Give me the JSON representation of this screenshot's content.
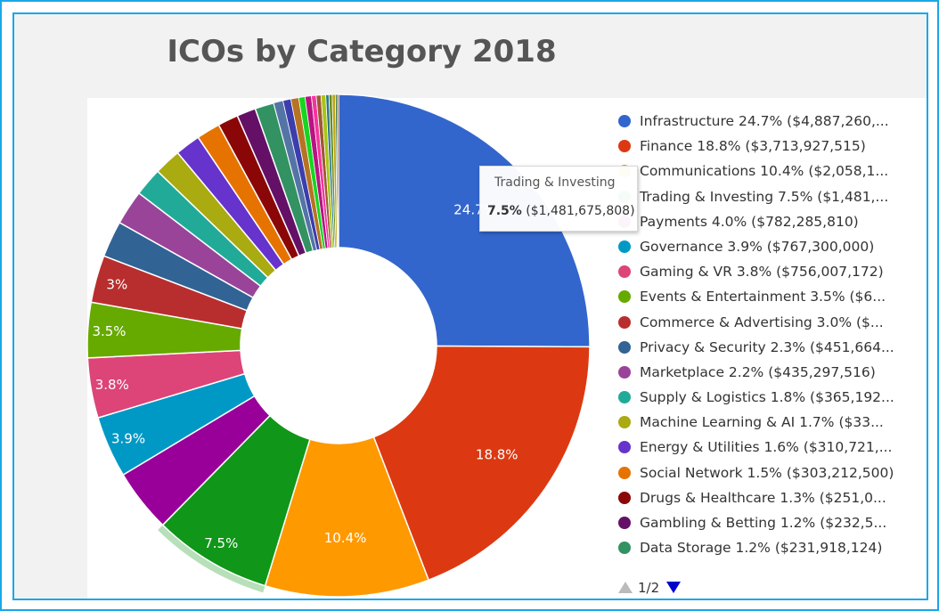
{
  "chart_data": {
    "type": "pie",
    "title": "ICOs by Category 2018",
    "slices": [
      {
        "name": "Infrastructure",
        "percent": 24.7,
        "label": "24.7%",
        "legend": "Infrastructure 24.7% ($4,887,260,...",
        "color": "#3366cc"
      },
      {
        "name": "Finance",
        "percent": 18.8,
        "label": "18.8%",
        "legend": "Finance 18.8% ($3,713,927,515)",
        "color": "#dc3912"
      },
      {
        "name": "Communications",
        "percent": 10.4,
        "label": "10.4%",
        "legend": "Communications 10.4% ($2,058,1...",
        "color": "#ff9900"
      },
      {
        "name": "Trading & Investing",
        "percent": 7.5,
        "label": "7.5%",
        "legend": "Trading & Investing 7.5% ($1,481,...",
        "color": "#109618"
      },
      {
        "name": "Payments",
        "percent": 4.0,
        "label": "",
        "legend": "Payments 4.0% ($782,285,810)",
        "color": "#990099"
      },
      {
        "name": "Governance",
        "percent": 3.9,
        "label": "3.9%",
        "legend": "Governance 3.9% ($767,300,000)",
        "color": "#0099c6"
      },
      {
        "name": "Gaming & VR",
        "percent": 3.8,
        "label": "3.8%",
        "legend": "Gaming & VR 3.8% ($756,007,172)",
        "color": "#dd4477"
      },
      {
        "name": "Events & Entertainment",
        "percent": 3.5,
        "label": "3.5%",
        "legend": "Events & Entertainment 3.5% ($6...",
        "color": "#66aa00"
      },
      {
        "name": "Commerce & Advertising",
        "percent": 3.0,
        "label": "3%",
        "legend": "Commerce & Advertising 3.0% ($...",
        "color": "#b82e2e"
      },
      {
        "name": "Privacy & Security",
        "percent": 2.3,
        "label": "",
        "legend": "Privacy & Security 2.3% ($451,664...",
        "color": "#316395"
      },
      {
        "name": "Marketplace",
        "percent": 2.2,
        "label": "",
        "legend": "Marketplace 2.2% ($435,297,516)",
        "color": "#994499"
      },
      {
        "name": "Supply & Logistics",
        "percent": 1.8,
        "label": "",
        "legend": "Supply & Logistics 1.8% ($365,192...",
        "color": "#22aa99"
      },
      {
        "name": "Machine Learning & AI",
        "percent": 1.7,
        "label": "",
        "legend": "Machine Learning & AI 1.7% ($33...",
        "color": "#aaaa11"
      },
      {
        "name": "Energy & Utilities",
        "percent": 1.6,
        "label": "",
        "legend": "Energy & Utilities 1.6% ($310,721,...",
        "color": "#6633cc"
      },
      {
        "name": "Social Network",
        "percent": 1.5,
        "label": "",
        "legend": "Social Network 1.5% ($303,212,500)",
        "color": "#e67300"
      },
      {
        "name": "Drugs & Healthcare",
        "percent": 1.3,
        "label": "",
        "legend": "Drugs & Healthcare 1.3% ($251,0...",
        "color": "#8b0707"
      },
      {
        "name": "Gambling & Betting",
        "percent": 1.2,
        "label": "",
        "legend": "Gambling & Betting 1.2% ($232,5...",
        "color": "#651067"
      },
      {
        "name": "Data Storage",
        "percent": 1.2,
        "label": "",
        "legend": "Data Storage 1.2% ($231,918,124)",
        "color": "#329262"
      }
    ],
    "tail_colors": [
      "#5574a6",
      "#3b3eac",
      "#b77322",
      "#16d620",
      "#b91383",
      "#f4359e",
      "#9c5935",
      "#a9c413",
      "#2a778d",
      "#668d1c",
      "#bea413",
      "#0c5922",
      "#743411"
    ],
    "tail_percents": [
      0.6,
      0.5,
      0.5,
      0.4,
      0.4,
      0.3,
      0.3,
      0.3,
      0.2,
      0.2,
      0.2,
      0.1,
      0.1
    ],
    "legend_position": "right",
    "donut": true
  },
  "tooltip": {
    "title": "Trading & Investing",
    "percent": "7.5%",
    "value": "($1,481,675,808)"
  },
  "legend_pager": {
    "page": "1/2"
  }
}
